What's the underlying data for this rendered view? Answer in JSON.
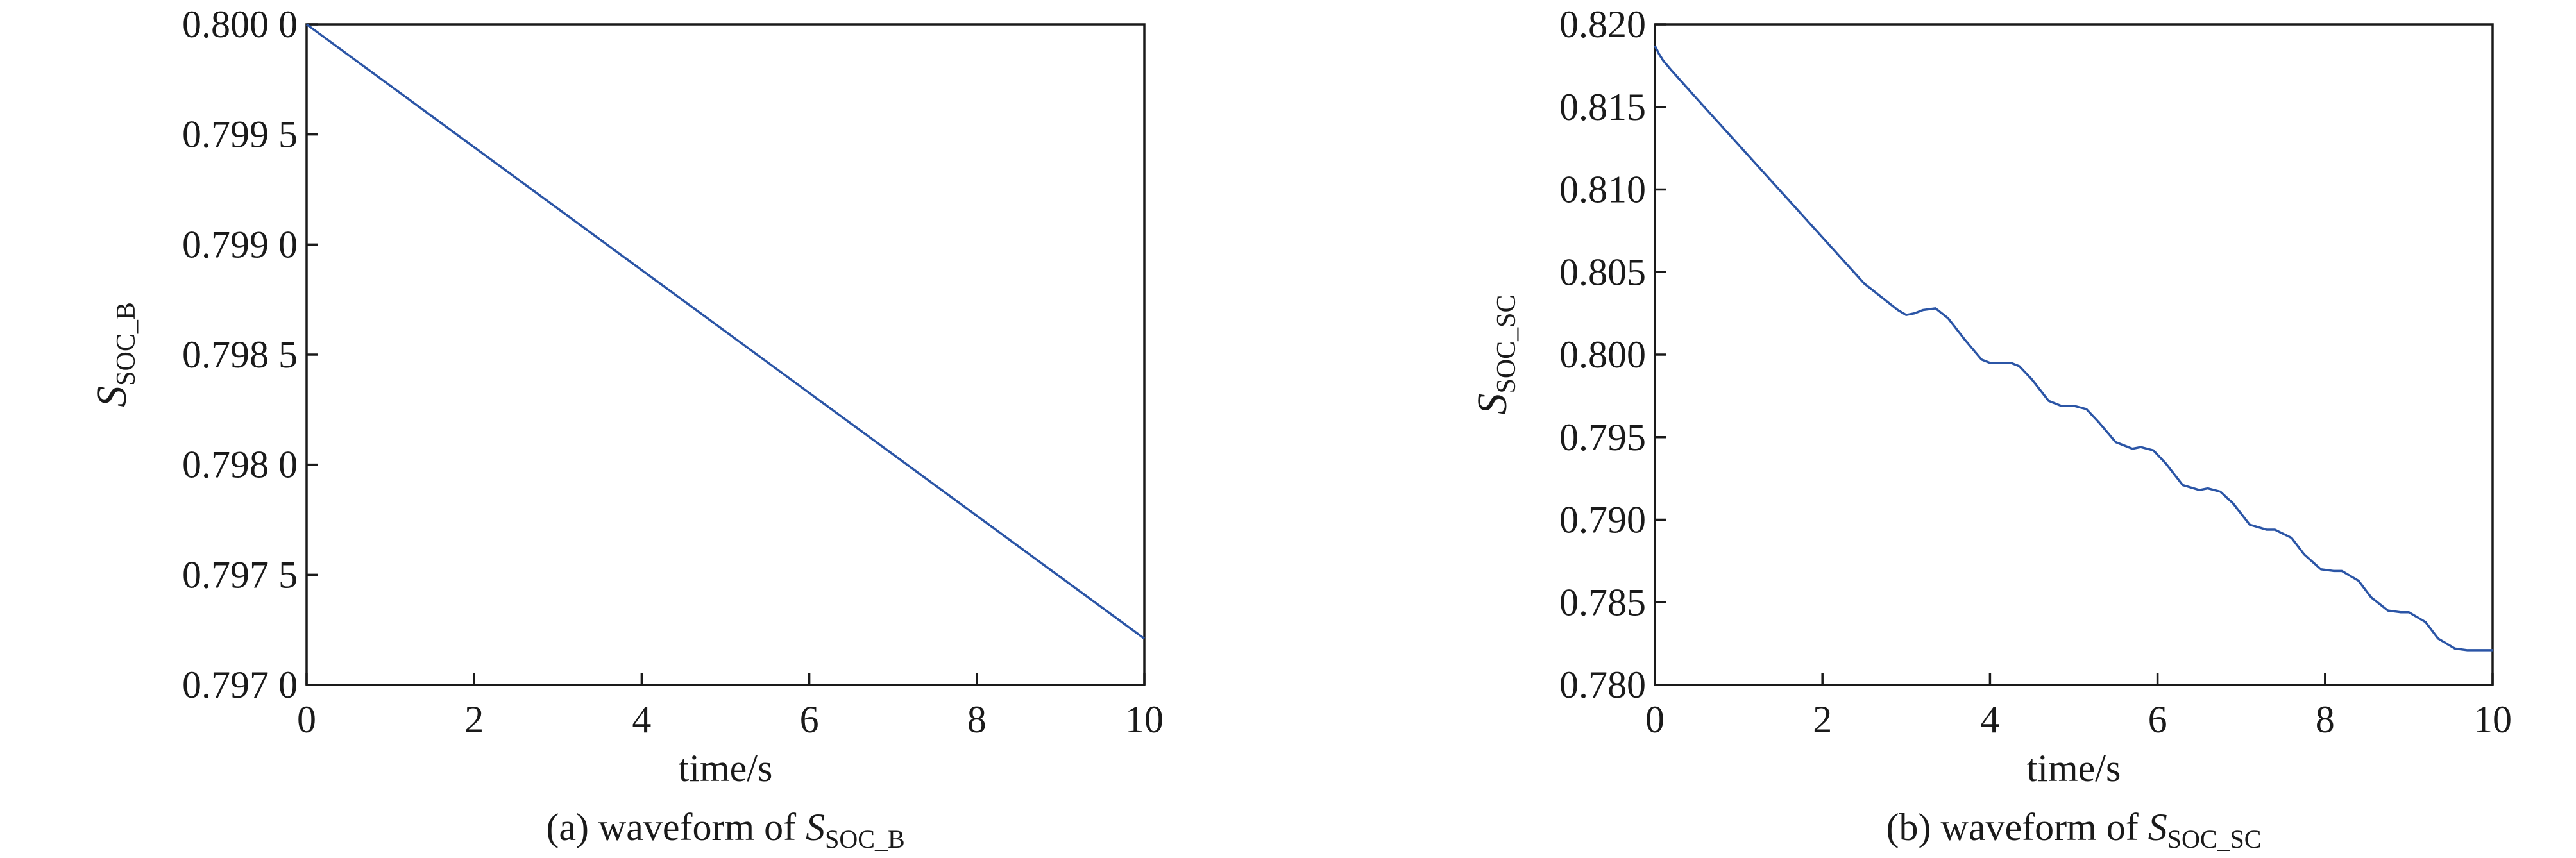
{
  "colors": {
    "series": "#2b55a6",
    "axis": "#1a1a1a"
  },
  "chart_data": [
    {
      "type": "line",
      "xlabel": "time/s",
      "ylabel_main": "S",
      "ylabel_sub": "SOC_B",
      "caption_prefix": "(a) waveform of ",
      "caption_main": "S",
      "caption_sub": "SOC_B",
      "xlim": [
        0,
        10
      ],
      "ylim": [
        0.797,
        0.8
      ],
      "xticks": [
        0,
        2,
        4,
        6,
        8,
        10
      ],
      "xtick_labels": [
        "0",
        "2",
        "4",
        "6",
        "8",
        "10"
      ],
      "yticks": [
        0.797,
        0.7975,
        0.798,
        0.7985,
        0.799,
        0.7995,
        0.8
      ],
      "ytick_labels": [
        "0.797 0",
        "0.797 5",
        "0.798 0",
        "0.798 5",
        "0.799 0",
        "0.799 5",
        "0.800 0"
      ],
      "grid": false,
      "series": [
        {
          "x": [
            0,
            10
          ],
          "y": [
            0.8,
            0.79721
          ]
        }
      ]
    },
    {
      "type": "line",
      "xlabel": "time/s",
      "ylabel_main": "S",
      "ylabel_sub": "SOC_SC",
      "caption_prefix": "(b) waveform of ",
      "caption_main": "S",
      "caption_sub": "SOC_SC",
      "xlim": [
        0,
        10
      ],
      "ylim": [
        0.78,
        0.82
      ],
      "xticks": [
        0,
        2,
        4,
        6,
        8,
        10
      ],
      "xtick_labels": [
        "0",
        "2",
        "4",
        "6",
        "8",
        "10"
      ],
      "yticks": [
        0.78,
        0.785,
        0.79,
        0.795,
        0.8,
        0.805,
        0.81,
        0.815,
        0.82
      ],
      "ytick_labels": [
        "0.780",
        "0.785",
        "0.790",
        "0.795",
        "0.800",
        "0.805",
        "0.810",
        "0.815",
        "0.820"
      ],
      "grid": false,
      "series": [
        {
          "x": [
            0,
            0.05,
            0.1,
            0.2,
            0.5,
            1.0,
            1.5,
            2.0,
            2.5,
            2.9,
            3.0,
            3.1,
            3.2,
            3.35,
            3.5,
            3.7,
            3.9,
            4.0,
            4.1,
            4.25,
            4.35,
            4.5,
            4.7,
            4.85,
            5.0,
            5.15,
            5.3,
            5.5,
            5.7,
            5.8,
            5.95,
            6.1,
            6.3,
            6.5,
            6.6,
            6.75,
            6.9,
            7.1,
            7.3,
            7.4,
            7.6,
            7.75,
            7.95,
            8.1,
            8.2,
            8.4,
            8.55,
            8.75,
            8.9,
            9.0,
            9.2,
            9.35,
            9.55,
            9.7,
            9.8,
            10.0
          ],
          "y": [
            0.8187,
            0.8182,
            0.8178,
            0.8172,
            0.8155,
            0.8127,
            0.8099,
            0.8071,
            0.8043,
            0.8027,
            0.8024,
            0.8025,
            0.8027,
            0.8028,
            0.8022,
            0.8009,
            0.7997,
            0.7995,
            0.7995,
            0.7995,
            0.7993,
            0.7985,
            0.7972,
            0.7969,
            0.7969,
            0.7967,
            0.7959,
            0.7947,
            0.7943,
            0.7944,
            0.7942,
            0.7934,
            0.7921,
            0.7918,
            0.7919,
            0.7917,
            0.791,
            0.7897,
            0.7894,
            0.7894,
            0.7889,
            0.7879,
            0.787,
            0.7869,
            0.7869,
            0.7863,
            0.7853,
            0.7845,
            0.7844,
            0.7844,
            0.7838,
            0.7828,
            0.7822,
            0.7821,
            0.7821,
            0.7821
          ]
        }
      ]
    }
  ]
}
